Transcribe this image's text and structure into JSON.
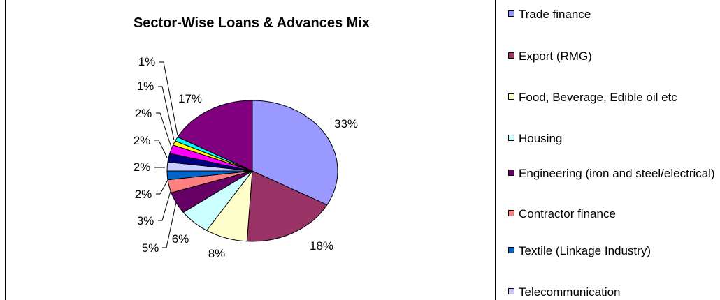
{
  "chart_data": {
    "type": "pie",
    "title": "Sector-Wise Loans & Advances Mix",
    "legend_position": "right",
    "slices": [
      {
        "name": "Trade finance",
        "value": 33,
        "label": "33%",
        "color": "#9999ff"
      },
      {
        "name": "Export (RMG)",
        "value": 18,
        "label": "18%",
        "color": "#993366"
      },
      {
        "name": "Food, Beverage, Edible oil etc",
        "value": 8,
        "label": "8%",
        "color": "#ffffcc"
      },
      {
        "name": "Housing",
        "value": 6,
        "label": "6%",
        "color": "#ccffff"
      },
      {
        "name": "Engineering (iron and steel/electrical)",
        "value": 5,
        "label": "5%",
        "color": "#660066"
      },
      {
        "name": "Contractor finance",
        "value": 3,
        "label": "3%",
        "color": "#ff8080"
      },
      {
        "name": "Textile (Linkage Industry)",
        "value": 2,
        "label": "2%",
        "color": "#0066cc"
      },
      {
        "name": "Telecommunication",
        "value": 2,
        "label": "2%",
        "color": "#ccccff"
      },
      {
        "name": "",
        "value": 2,
        "label": "2%",
        "color": "#000080"
      },
      {
        "name": "",
        "value": 2,
        "label": "2%",
        "color": "#ff00ff"
      },
      {
        "name": "",
        "value": 1,
        "label": "1%",
        "color": "#ffff00"
      },
      {
        "name": "",
        "value": 1,
        "label": "1%",
        "color": "#00ffff"
      },
      {
        "name": "",
        "value": 17,
        "label": "17%",
        "color": "#800080"
      }
    ]
  }
}
